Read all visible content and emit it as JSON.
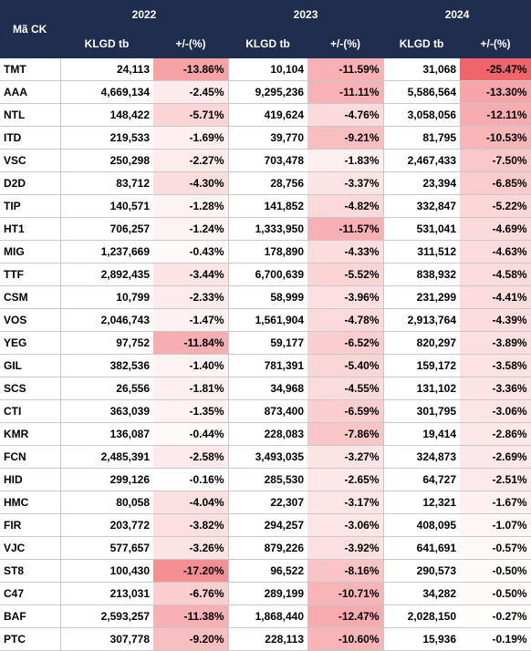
{
  "header": {
    "code_label": "Mã CK",
    "years": [
      "2022",
      "2023",
      "2024"
    ],
    "vol_label": "KLGD tb",
    "chg_label": "+/-(%)"
  },
  "rows": [
    {
      "code": "TMT",
      "cols": [
        [
          "24,113",
          "-13.86%"
        ],
        [
          "10,104",
          "-11.59%"
        ],
        [
          "31,068",
          "-25.47%"
        ]
      ]
    },
    {
      "code": "AAA",
      "cols": [
        [
          "4,669,134",
          "-2.45%"
        ],
        [
          "9,295,236",
          "-11.11%"
        ],
        [
          "5,586,564",
          "-13.30%"
        ]
      ]
    },
    {
      "code": "NTL",
      "cols": [
        [
          "148,422",
          "-5.71%"
        ],
        [
          "419,624",
          "-4.76%"
        ],
        [
          "3,058,056",
          "-12.11%"
        ]
      ]
    },
    {
      "code": "ITD",
      "cols": [
        [
          "219,533",
          "-1.69%"
        ],
        [
          "39,770",
          "-9.21%"
        ],
        [
          "81,795",
          "-10.53%"
        ]
      ]
    },
    {
      "code": "VSC",
      "cols": [
        [
          "250,298",
          "-2.27%"
        ],
        [
          "703,478",
          "-1.83%"
        ],
        [
          "2,467,433",
          "-7.50%"
        ]
      ]
    },
    {
      "code": "D2D",
      "cols": [
        [
          "83,712",
          "-4.30%"
        ],
        [
          "28,756",
          "-3.37%"
        ],
        [
          "23,394",
          "-6.85%"
        ]
      ]
    },
    {
      "code": "TIP",
      "cols": [
        [
          "140,571",
          "-1.28%"
        ],
        [
          "141,852",
          "-4.82%"
        ],
        [
          "332,847",
          "-5.22%"
        ]
      ]
    },
    {
      "code": "HT1",
      "cols": [
        [
          "706,257",
          "-1.24%"
        ],
        [
          "1,333,950",
          "-11.57%"
        ],
        [
          "531,041",
          "-4.69%"
        ]
      ]
    },
    {
      "code": "MIG",
      "cols": [
        [
          "1,237,669",
          "-0.43%"
        ],
        [
          "178,890",
          "-4.33%"
        ],
        [
          "311,512",
          "-4.63%"
        ]
      ]
    },
    {
      "code": "TTF",
      "cols": [
        [
          "2,892,435",
          "-3.44%"
        ],
        [
          "6,700,639",
          "-5.52%"
        ],
        [
          "838,932",
          "-4.58%"
        ]
      ]
    },
    {
      "code": "CSM",
      "cols": [
        [
          "10,799",
          "-2.33%"
        ],
        [
          "58,999",
          "-3.96%"
        ],
        [
          "231,299",
          "-4.41%"
        ]
      ]
    },
    {
      "code": "VOS",
      "cols": [
        [
          "2,046,743",
          "-1.47%"
        ],
        [
          "1,561,904",
          "-4.78%"
        ],
        [
          "2,913,764",
          "-4.39%"
        ]
      ]
    },
    {
      "code": "YEG",
      "cols": [
        [
          "97,752",
          "-11.84%"
        ],
        [
          "59,177",
          "-6.52%"
        ],
        [
          "820,297",
          "-3.89%"
        ]
      ]
    },
    {
      "code": "GIL",
      "cols": [
        [
          "382,536",
          "-1.40%"
        ],
        [
          "781,391",
          "-5.40%"
        ],
        [
          "159,172",
          "-3.58%"
        ]
      ]
    },
    {
      "code": "SCS",
      "cols": [
        [
          "26,556",
          "-1.81%"
        ],
        [
          "34,968",
          "-4.55%"
        ],
        [
          "131,102",
          "-3.36%"
        ]
      ]
    },
    {
      "code": "CTI",
      "cols": [
        [
          "363,039",
          "-1.35%"
        ],
        [
          "873,400",
          "-6.59%"
        ],
        [
          "301,795",
          "-3.06%"
        ]
      ]
    },
    {
      "code": "KMR",
      "cols": [
        [
          "136,087",
          "-0.44%"
        ],
        [
          "228,083",
          "-7.86%"
        ],
        [
          "19,414",
          "-2.86%"
        ]
      ]
    },
    {
      "code": "FCN",
      "cols": [
        [
          "2,485,391",
          "-2.58%"
        ],
        [
          "3,493,035",
          "-3.27%"
        ],
        [
          "324,873",
          "-2.69%"
        ]
      ]
    },
    {
      "code": "HID",
      "cols": [
        [
          "299,126",
          "-0.16%"
        ],
        [
          "285,530",
          "-2.65%"
        ],
        [
          "64,727",
          "-2.51%"
        ]
      ]
    },
    {
      "code": "HMC",
      "cols": [
        [
          "80,058",
          "-4.04%"
        ],
        [
          "22,307",
          "-3.17%"
        ],
        [
          "12,321",
          "-1.67%"
        ]
      ]
    },
    {
      "code": "FIR",
      "cols": [
        [
          "203,772",
          "-3.82%"
        ],
        [
          "294,257",
          "-3.06%"
        ],
        [
          "408,095",
          "-1.07%"
        ]
      ]
    },
    {
      "code": "VJC",
      "cols": [
        [
          "577,657",
          "-3.26%"
        ],
        [
          "879,226",
          "-3.92%"
        ],
        [
          "641,691",
          "-0.57%"
        ]
      ]
    },
    {
      "code": "ST8",
      "cols": [
        [
          "100,430",
          "-17.20%"
        ],
        [
          "96,522",
          "-8.16%"
        ],
        [
          "290,573",
          "-0.50%"
        ]
      ]
    },
    {
      "code": "C47",
      "cols": [
        [
          "213,031",
          "-6.76%"
        ],
        [
          "289,199",
          "-10.71%"
        ],
        [
          "34,282",
          "-0.50%"
        ]
      ]
    },
    {
      "code": "BAF",
      "cols": [
        [
          "2,593,257",
          "-11.38%"
        ],
        [
          "1,868,440",
          "-12.47%"
        ],
        [
          "2,028,150",
          "-0.27%"
        ]
      ]
    },
    {
      "code": "PTC",
      "cols": [
        [
          "307,778",
          "-9.20%"
        ],
        [
          "228,113",
          "-10.60%"
        ],
        [
          "15,936",
          "-0.19%"
        ]
      ]
    }
  ],
  "colors": {
    "header_bg": "#1f2d4f",
    "scale_light": "#ffffff",
    "scale_dark": "#f0646a"
  }
}
